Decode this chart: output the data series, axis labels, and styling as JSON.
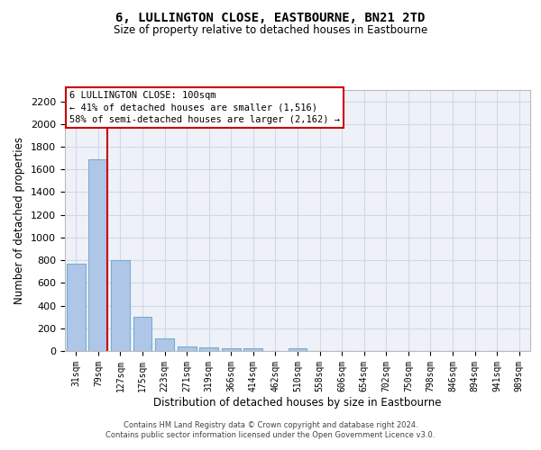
{
  "title": "6, LULLINGTON CLOSE, EASTBOURNE, BN21 2TD",
  "subtitle": "Size of property relative to detached houses in Eastbourne",
  "xlabel": "Distribution of detached houses by size in Eastbourne",
  "ylabel": "Number of detached properties",
  "footer_line1": "Contains HM Land Registry data © Crown copyright and database right 2024.",
  "footer_line2": "Contains public sector information licensed under the Open Government Licence v3.0.",
  "categories": [
    "31sqm",
    "79sqm",
    "127sqm",
    "175sqm",
    "223sqm",
    "271sqm",
    "319sqm",
    "366sqm",
    "414sqm",
    "462sqm",
    "510sqm",
    "558sqm",
    "606sqm",
    "654sqm",
    "702sqm",
    "750sqm",
    "798sqm",
    "846sqm",
    "894sqm",
    "941sqm",
    "989sqm"
  ],
  "values": [
    770,
    1690,
    800,
    300,
    110,
    40,
    30,
    25,
    20,
    0,
    25,
    0,
    0,
    0,
    0,
    0,
    0,
    0,
    0,
    0,
    0
  ],
  "bar_color": "#aec6e8",
  "bar_edge_color": "#7aaad0",
  "grid_color": "#d0d8e8",
  "background_color": "#eef2f8",
  "vline_color": "#cc0000",
  "annotation_text": "6 LULLINGTON CLOSE: 100sqm\n← 41% of detached houses are smaller (1,516)\n58% of semi-detached houses are larger (2,162) →",
  "annotation_box_color": "#cc0000",
  "ylim": [
    0,
    2300
  ],
  "yticks": [
    0,
    200,
    400,
    600,
    800,
    1000,
    1200,
    1400,
    1600,
    1800,
    2000,
    2200
  ]
}
